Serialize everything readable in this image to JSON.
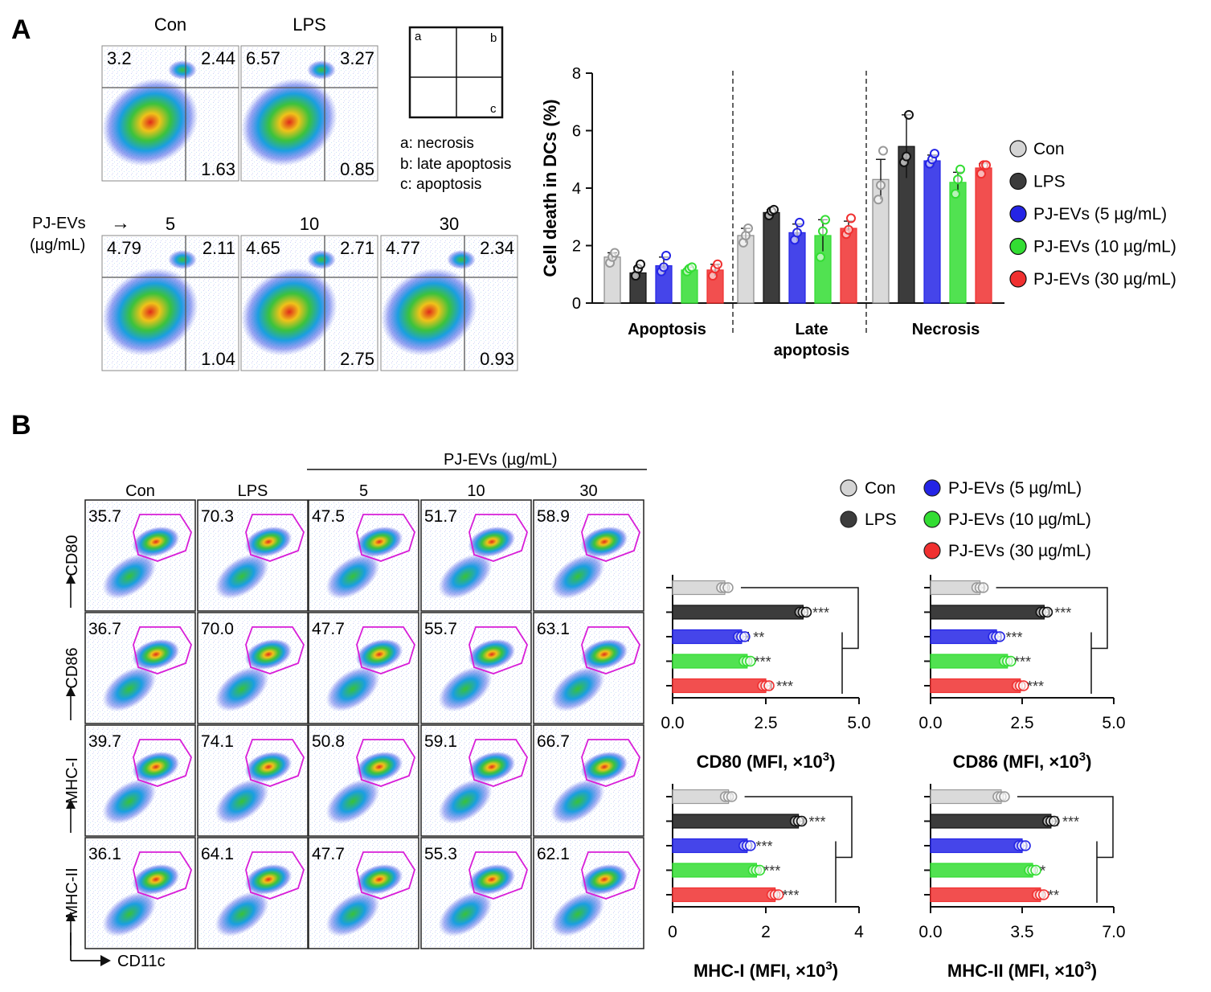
{
  "colors": {
    "con": "#d4d4d4",
    "lps": "#3c3c3c",
    "ev5": "#2424e6",
    "ev10": "#33dd33",
    "ev30": "#f03030",
    "gate": "#d81ed8",
    "pointFillCon": "#e8e8e8"
  },
  "panelA": {
    "label": "A",
    "top_flow": [
      {
        "title": "Con",
        "q_a": "3.2",
        "q_b": "2.44",
        "q_c": "1.63"
      },
      {
        "title": "LPS",
        "q_a": "6.57",
        "q_b": "3.27",
        "q_c": "0.85"
      }
    ],
    "dose_header": {
      "label_line1": "PJ-EVs",
      "label_line2": "(µg/mL)",
      "arrow": "→"
    },
    "bottom_flow": [
      {
        "title": "5",
        "q_a": "4.79",
        "q_b": "2.11",
        "q_c": "1.04"
      },
      {
        "title": "10",
        "q_a": "4.65",
        "q_b": "2.71",
        "q_c": "2.75"
      },
      {
        "title": "30",
        "q_a": "4.77",
        "q_b": "2.34",
        "q_c": "0.93"
      }
    ],
    "quadrant_key": {
      "a": "a",
      "b": "b",
      "c": "c",
      "legend": [
        "a: necrosis",
        "b: late apoptosis",
        "c: apoptosis"
      ]
    },
    "legend": [
      "Con",
      "LPS",
      "PJ-EVs (5 µg/mL)",
      "PJ-EVs (10 µg/mL)",
      "PJ-EVs (30 µg/mL)"
    ]
  },
  "panelB": {
    "label": "B",
    "header_group": "PJ-EVs (µg/mL)",
    "columns": [
      "Con",
      "LPS",
      "5",
      "10",
      "30"
    ],
    "rows": [
      {
        "marker": "CD80",
        "values": [
          "35.7",
          "70.3",
          "47.5",
          "51.7",
          "58.9"
        ]
      },
      {
        "marker": "CD86",
        "values": [
          "36.7",
          "70.0",
          "47.7",
          "55.7",
          "63.1"
        ]
      },
      {
        "marker": "MHC-I",
        "values": [
          "39.7",
          "74.1",
          "50.8",
          "59.1",
          "66.7"
        ]
      },
      {
        "marker": "MHC-II",
        "values": [
          "36.1",
          "64.1",
          "47.7",
          "55.3",
          "62.1"
        ]
      }
    ],
    "x_axis_label": "CD11c",
    "legend_left": [
      "Con",
      "LPS"
    ],
    "legend_right": [
      "PJ-EVs (5 µg/mL)",
      "PJ-EVs (10 µg/mL)",
      "PJ-EVs (30 µg/mL)"
    ]
  },
  "chart_data": [
    {
      "type": "bar",
      "title": "",
      "ylabel": "Cell death in DCs (%)",
      "xlabel": "",
      "ylim": [
        0,
        8
      ],
      "yticks": [
        "0",
        "2",
        "4",
        "6",
        "8"
      ],
      "categories": [
        "Apoptosis",
        "Late apoptosis",
        "Necrosis"
      ],
      "category_labels": [
        [
          "Apoptosis"
        ],
        [
          "Late",
          "apoptosis"
        ],
        [
          "Necrosis"
        ]
      ],
      "series": [
        {
          "name": "Con",
          "values": [
            1.6,
            2.35,
            4.3
          ],
          "err": [
            0.15,
            0.25,
            0.7
          ],
          "points": [
            [
              1.4,
              1.6,
              1.75
            ],
            [
              2.1,
              2.35,
              2.6
            ],
            [
              3.6,
              4.1,
              5.3
            ]
          ]
        },
        {
          "name": "LPS",
          "values": [
            1.05,
            3.15,
            5.45
          ],
          "err": [
            0.2,
            0.1,
            1.1
          ],
          "points": [
            [
              0.95,
              1.2,
              1.35
            ],
            [
              3.05,
              3.2,
              3.25
            ],
            [
              4.9,
              5.1,
              6.55
            ]
          ]
        },
        {
          "name": "PJ-EVs (5 µg/mL)",
          "values": [
            1.3,
            2.45,
            4.95
          ],
          "err": [
            0.3,
            0.3,
            0.2
          ],
          "points": [
            [
              1.1,
              1.25,
              1.65
            ],
            [
              2.2,
              2.45,
              2.8
            ],
            [
              4.85,
              5.0,
              5.2
            ]
          ]
        },
        {
          "name": "PJ-EVs (10 µg/mL)",
          "values": [
            1.15,
            2.35,
            4.2
          ],
          "err": [
            0.1,
            0.55,
            0.35
          ],
          "points": [
            [
              1.1,
              1.2,
              1.25
            ],
            [
              1.6,
              2.5,
              2.9
            ],
            [
              3.8,
              4.3,
              4.65
            ]
          ]
        },
        {
          "name": "PJ-EVs (30 µg/mL)",
          "values": [
            1.15,
            2.6,
            4.7
          ],
          "err": [
            0.2,
            0.25,
            0.15
          ],
          "points": [
            [
              0.95,
              1.2,
              1.35
            ],
            [
              2.4,
              2.55,
              2.95
            ],
            [
              4.5,
              4.8,
              4.8
            ]
          ]
        }
      ]
    },
    {
      "type": "bar",
      "orientation": "horizontal",
      "xlabel": "CD80 (MFI, ×10",
      "xlabel_sup": "3",
      "xlabel_end": ")",
      "xlim": [
        0,
        5
      ],
      "xticks": [
        "0.0",
        "2.5",
        "5.0"
      ],
      "categories": [
        "Con",
        "LPS",
        "PJ-EVs (5 µg/mL)",
        "PJ-EVs (10 µg/mL)",
        "PJ-EVs (30 µg/mL)"
      ],
      "values": [
        1.4,
        3.5,
        1.85,
        2.0,
        2.5
      ],
      "err": [
        0.08,
        0.12,
        0.18,
        0.06,
        0.15
      ],
      "significance": [
        "",
        "***",
        "**",
        "***",
        "***"
      ]
    },
    {
      "type": "bar",
      "orientation": "horizontal",
      "xlabel": "CD86 (MFI, ×10",
      "xlabel_sup": "3",
      "xlabel_end": ")",
      "xlim": [
        0,
        5
      ],
      "xticks": [
        "0.0",
        "2.5",
        "5.0"
      ],
      "categories": [
        "Con",
        "LPS",
        "PJ-EVs (5 µg/mL)",
        "PJ-EVs (10 µg/mL)",
        "PJ-EVs (30 µg/mL)"
      ],
      "values": [
        1.35,
        3.1,
        1.8,
        2.1,
        2.45
      ],
      "err": [
        0.1,
        0.15,
        0.12,
        0.05,
        0.05
      ],
      "significance": [
        "",
        "***",
        "***",
        "***",
        "***"
      ]
    },
    {
      "type": "bar",
      "orientation": "horizontal",
      "xlabel": "MHC-I (MFI, ×10",
      "xlabel_sup": "3",
      "xlabel_end": ")",
      "xlim": [
        0,
        4
      ],
      "xticks": [
        "0",
        "2",
        "4"
      ],
      "categories": [
        "Con",
        "LPS",
        "PJ-EVs (5 µg/mL)",
        "PJ-EVs (10 µg/mL)",
        "PJ-EVs (30 µg/mL)"
      ],
      "values": [
        1.2,
        2.7,
        1.6,
        1.8,
        2.2
      ],
      "err": [
        0.05,
        0.12,
        0.08,
        0.05,
        0.05
      ],
      "significance": [
        "",
        "***",
        "***",
        "***",
        "***"
      ]
    },
    {
      "type": "bar",
      "orientation": "horizontal",
      "xlabel": "MHC-II (MFI, ×10",
      "xlabel_sup": "3",
      "xlabel_end": ")",
      "xlim": [
        0,
        7
      ],
      "xticks": [
        "0.0",
        "3.5",
        "7.0"
      ],
      "categories": [
        "Con",
        "LPS",
        "PJ-EVs (5 µg/mL)",
        "PJ-EVs (10 µg/mL)",
        "PJ-EVs (30 µg/mL)"
      ],
      "values": [
        2.7,
        4.6,
        3.5,
        3.9,
        4.2
      ],
      "err": [
        0.08,
        0.25,
        0.15,
        0.1,
        0.1
      ],
      "significance": [
        "",
        "***",
        "",
        "*",
        "**"
      ]
    }
  ]
}
